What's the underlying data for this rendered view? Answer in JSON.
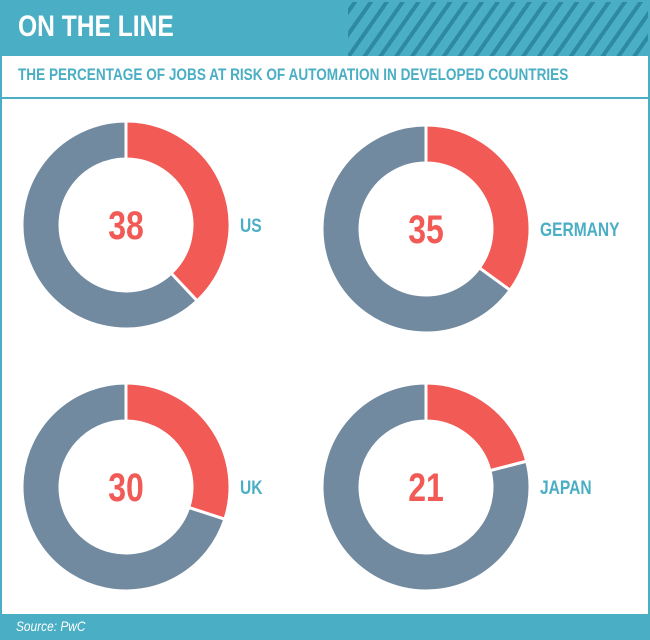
{
  "header": {
    "title": "ON THE LINE"
  },
  "subtitle": "THE PERCENTAGE OF JOBS AT RISK OF AUTOMATION IN DEVELOPED COUNTRIES",
  "footer": {
    "source": "Source: PwC"
  },
  "colors": {
    "risk": "#f15a55",
    "rest": "#728aa0",
    "accent": "#4aaec4",
    "number": "#f15a55"
  },
  "chart_data": {
    "type": "pie",
    "title": "THE PERCENTAGE OF JOBS AT RISK OF AUTOMATION IN DEVELOPED COUNTRIES",
    "categories": [
      "US",
      "GERMANY",
      "UK",
      "JAPAN"
    ],
    "values": [
      38,
      35,
      30,
      21
    ],
    "labels": [
      "38",
      "35",
      "30",
      "21"
    ]
  }
}
